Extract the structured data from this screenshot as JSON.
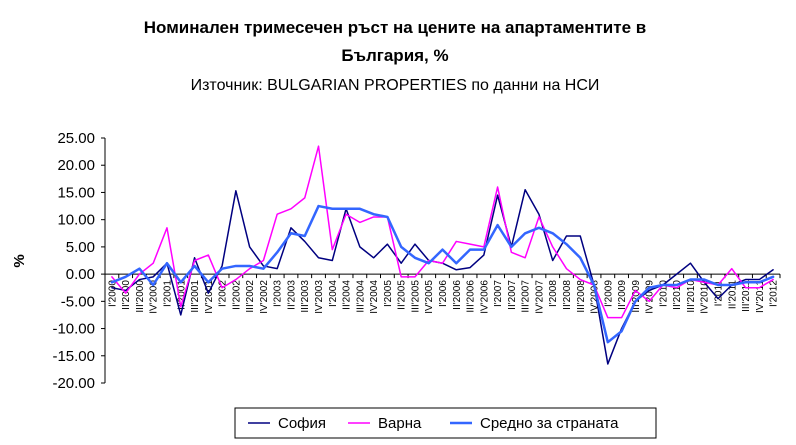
{
  "chart_data": {
    "type": "line",
    "title_line1": "Номинален тримесечен ръст на цените на апартаментите в",
    "title_line2": "България, %",
    "subtitle": "Източник: BULGARIAN PROPERTIES по данни на НСИ",
    "xlabel": "",
    "ylabel": "%",
    "ylim": [
      -20,
      25
    ],
    "yticks": [
      "25.00",
      "20.00",
      "15.00",
      "10.00",
      "5.00",
      "0.00",
      "-5.00",
      "-10.00",
      "-15.00",
      "-20.00"
    ],
    "ytick_values": [
      25,
      20,
      15,
      10,
      5,
      0,
      -5,
      -10,
      -15,
      -20
    ],
    "grid": false,
    "legend_position": "bottom",
    "categories": [
      "I'2000",
      "II'2000",
      "III'2000",
      "IV'2000",
      "I'2001",
      "II'2001",
      "III'2001",
      "IV'2001",
      "I'2002",
      "II'2002",
      "III'2002",
      "IV'2002",
      "I'2003",
      "II'2003",
      "III'2003",
      "IV'2003",
      "I'2004",
      "II'2004",
      "III'2004",
      "IV'2004",
      "I'2005",
      "II'2005",
      "III'2005",
      "IV'2005",
      "I'2006",
      "II'2006",
      "III'2006",
      "IV'2006",
      "I'2007",
      "II'2007",
      "III'2007",
      "IV'2007",
      "I'2008",
      "II'2008",
      "III'2008",
      "IV'2008",
      "I'2009",
      "II'2009",
      "III'2009",
      "IV'2009",
      "I'2010",
      "II'2010",
      "III'2010",
      "IV'2010",
      "I'2011",
      "II'2011",
      "III'2011",
      "IV'2011",
      "I'2012"
    ],
    "x_tick_labels": [
      "I'2000",
      "II'2000",
      "III'2000",
      "IV'2000",
      "I'2001",
      "II'2001",
      "III'2001",
      "IV'2001",
      "I'2002",
      "II'2002",
      "III'2002",
      "IV'2002",
      "I'2003",
      "II'2003",
      "III'2003",
      "IV'2003",
      "I'2004",
      "II'2004",
      "III'2004",
      "IV'2004",
      "I'2005",
      "II'2005",
      "III'2005",
      "IV'2005",
      "I'2006",
      "II'2006",
      "III'2006",
      "IV'2006",
      "I'2007",
      "II'2007",
      "III'2007",
      "IV'2007",
      "I'2008",
      "II'2008",
      "III'2008",
      "IV'2008",
      "I'2009",
      "II'2009",
      "III'2009",
      "IV'2009",
      "I'2010",
      "II'2010",
      "III'2010",
      "IV'2010",
      "I'2011",
      "II'2011",
      "III'2011",
      "IV'2011",
      "I'2012"
    ],
    "series": [
      {
        "name": "София",
        "color": "#000080",
        "values": [
          -2.5,
          -3.0,
          -1.0,
          -0.5,
          2.0,
          -7.5,
          3.0,
          -3.5,
          1.5,
          15.3,
          5.0,
          1.5,
          1.0,
          8.5,
          6.0,
          3.0,
          2.5,
          12.0,
          5.0,
          3.0,
          5.5,
          2.0,
          5.5,
          2.5,
          2.0,
          0.8,
          1.2,
          3.5,
          14.5,
          5.0,
          15.5,
          11.0,
          2.5,
          7.0,
          7.0,
          -2.0,
          -16.5,
          -10.0,
          -5.0,
          -3.0,
          -2.0,
          0.0,
          2.0,
          -1.5,
          -4.5,
          -2.0,
          -1.0,
          -1.0,
          0.8
        ]
      },
      {
        "name": "Варна",
        "color": "#FF00FF",
        "values": [
          -0.5,
          -3.5,
          0.0,
          2.0,
          8.5,
          -6.0,
          2.5,
          3.5,
          -2.5,
          -1.0,
          1.0,
          2.5,
          11.0,
          12.0,
          14.0,
          23.5,
          4.5,
          11.0,
          9.5,
          10.5,
          10.5,
          -0.5,
          -0.5,
          2.5,
          2.0,
          6.0,
          5.5,
          5.0,
          16.0,
          4.0,
          3.0,
          10.5,
          5.0,
          1.0,
          -1.0,
          -2.0,
          -8.0,
          -8.0,
          -3.0,
          -5.0,
          -2.0,
          -2.5,
          -1.0,
          -1.5,
          -2.0,
          1.0,
          -2.5,
          -2.5,
          -1.0
        ]
      },
      {
        "name": "Средно за страната",
        "color": "#3366FF",
        "values": [
          -1.5,
          -0.5,
          1.0,
          -2.0,
          2.0,
          -1.5,
          1.5,
          -1.5,
          1.0,
          1.5,
          1.5,
          1.0,
          4.0,
          7.5,
          7.0,
          12.5,
          12.0,
          12.0,
          12.0,
          11.0,
          10.5,
          5.0,
          3.0,
          2.0,
          4.5,
          2.0,
          4.5,
          4.5,
          9.0,
          5.0,
          7.5,
          8.5,
          7.5,
          5.5,
          3.0,
          -2.0,
          -12.5,
          -10.5,
          -5.0,
          -2.5,
          -2.0,
          -2.0,
          -1.0,
          -1.0,
          -2.0,
          -2.0,
          -1.5,
          -1.5,
          -0.5
        ]
      }
    ]
  }
}
